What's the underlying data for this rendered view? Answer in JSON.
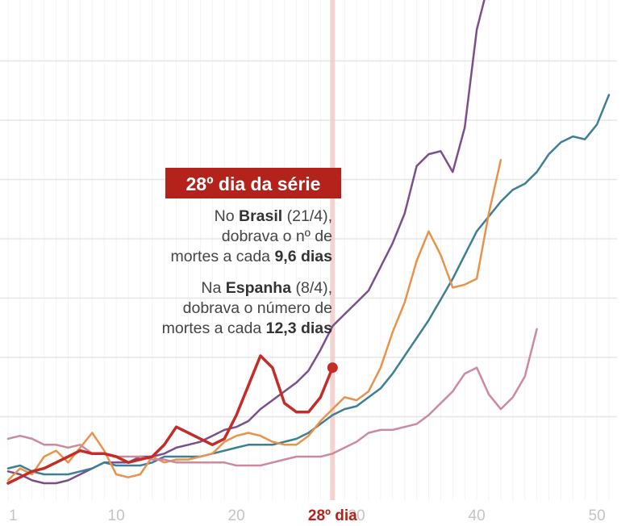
{
  "chart_data": {
    "type": "line",
    "xlabel": "",
    "ylabel": "",
    "x_ticks": [
      1,
      10,
      20,
      30,
      40,
      50
    ],
    "highlight_tick": {
      "x": 28,
      "label": "28º dia"
    },
    "xlim": [
      1,
      51
    ],
    "ylim": [
      0,
      8
    ],
    "grid": true,
    "series": [
      {
        "key": "purple",
        "color": "#7b4f8c",
        "width": 2.5,
        "x": [
          1,
          2,
          3,
          4,
          5,
          6,
          7,
          8,
          9,
          10,
          11,
          12,
          13,
          14,
          15,
          16,
          17,
          18,
          19,
          20,
          21,
          22,
          23,
          24,
          25,
          26,
          27,
          28,
          29,
          30,
          31,
          32,
          33,
          34,
          35,
          36,
          37,
          38,
          39,
          40,
          41
        ],
        "y": [
          0.05,
          0.0,
          -0.1,
          -0.15,
          -0.15,
          -0.1,
          0.0,
          0.1,
          0.2,
          0.2,
          0.2,
          0.3,
          0.3,
          0.35,
          0.45,
          0.5,
          0.55,
          0.65,
          0.75,
          0.8,
          0.9,
          1.1,
          1.25,
          1.4,
          1.55,
          1.75,
          2.1,
          2.5,
          2.7,
          2.9,
          3.1,
          3.5,
          3.9,
          4.4,
          5.2,
          5.4,
          5.45,
          5.1,
          5.85,
          7.5,
          8.3
        ]
      },
      {
        "key": "teal",
        "color": "#3e7f95",
        "width": 2.5,
        "x": [
          1,
          2,
          3,
          4,
          5,
          6,
          7,
          8,
          9,
          10,
          11,
          12,
          13,
          14,
          15,
          16,
          17,
          18,
          19,
          20,
          21,
          22,
          23,
          24,
          25,
          26,
          27,
          28,
          29,
          30,
          31,
          32,
          33,
          34,
          35,
          36,
          37,
          38,
          39,
          40,
          41,
          42,
          43,
          44,
          45,
          46,
          47,
          48,
          49,
          50,
          51
        ],
        "y": [
          0.1,
          0.15,
          0.05,
          0.0,
          0.0,
          0.0,
          0.05,
          0.1,
          0.2,
          0.15,
          0.15,
          0.15,
          0.2,
          0.3,
          0.3,
          0.3,
          0.3,
          0.35,
          0.4,
          0.45,
          0.5,
          0.5,
          0.5,
          0.55,
          0.6,
          0.7,
          0.85,
          1.0,
          1.1,
          1.15,
          1.3,
          1.45,
          1.7,
          2.0,
          2.3,
          2.6,
          2.95,
          3.3,
          3.7,
          4.1,
          4.35,
          4.6,
          4.8,
          4.9,
          5.1,
          5.4,
          5.6,
          5.7,
          5.65,
          5.9,
          6.4
        ]
      },
      {
        "key": "orange",
        "color": "#e8924a",
        "width": 2.5,
        "x": [
          1,
          2,
          3,
          4,
          5,
          6,
          7,
          8,
          9,
          10,
          11,
          12,
          13,
          14,
          15,
          16,
          17,
          18,
          19,
          20,
          21,
          22,
          23,
          24,
          25,
          26,
          27,
          28,
          29,
          30,
          31,
          32,
          33,
          34,
          35,
          36,
          37,
          38,
          39,
          40,
          41,
          42
        ],
        "y": [
          -0.1,
          0.1,
          0.0,
          0.3,
          0.4,
          0.2,
          0.45,
          0.7,
          0.4,
          0.0,
          -0.05,
          0.0,
          0.3,
          0.2,
          0.25,
          0.25,
          0.3,
          0.35,
          0.55,
          0.65,
          0.7,
          0.65,
          0.55,
          0.5,
          0.5,
          0.65,
          0.9,
          1.1,
          1.3,
          1.25,
          1.4,
          1.8,
          2.4,
          2.9,
          3.6,
          4.1,
          3.7,
          3.15,
          3.2,
          3.3,
          4.4,
          5.3
        ]
      },
      {
        "key": "pink",
        "color": "#cc8a9f",
        "width": 2.5,
        "x": [
          1,
          2,
          3,
          4,
          5,
          6,
          7,
          8,
          9,
          10,
          11,
          12,
          13,
          14,
          15,
          16,
          17,
          18,
          19,
          20,
          21,
          22,
          23,
          24,
          25,
          26,
          27,
          28,
          29,
          30,
          31,
          32,
          33,
          34,
          35,
          36,
          37,
          38,
          39,
          40,
          41,
          42,
          43,
          44,
          45
        ],
        "y": [
          0.6,
          0.65,
          0.6,
          0.5,
          0.5,
          0.45,
          0.5,
          0.35,
          0.35,
          0.3,
          0.3,
          0.3,
          0.25,
          0.25,
          0.2,
          0.2,
          0.2,
          0.2,
          0.2,
          0.15,
          0.15,
          0.15,
          0.2,
          0.25,
          0.3,
          0.3,
          0.3,
          0.35,
          0.45,
          0.55,
          0.7,
          0.75,
          0.75,
          0.8,
          0.85,
          1.0,
          1.2,
          1.4,
          1.7,
          1.8,
          1.35,
          1.1,
          1.3,
          1.65,
          2.45
        ]
      },
      {
        "key": "brasil",
        "color": "#c42d27",
        "width": 3.5,
        "x": [
          1,
          2,
          3,
          4,
          5,
          6,
          7,
          8,
          9,
          10,
          11,
          12,
          13,
          14,
          15,
          16,
          17,
          18,
          19,
          20,
          21,
          22,
          23,
          24,
          25,
          26,
          27,
          28
        ],
        "y": [
          -0.15,
          -0.05,
          0.05,
          0.1,
          0.2,
          0.3,
          0.4,
          0.35,
          0.35,
          0.3,
          0.2,
          0.25,
          0.3,
          0.5,
          0.8,
          0.7,
          0.6,
          0.5,
          0.6,
          1.0,
          1.5,
          2.0,
          1.8,
          1.2,
          1.05,
          1.05,
          1.3,
          1.8
        ]
      }
    ],
    "marker": {
      "series": "brasil",
      "x": 28,
      "y": 1.8,
      "color": "#c42d27"
    },
    "annotation": {
      "title": "28º dia da série",
      "brasil_lines": [
        [
          {
            "t": "No ",
            "b": false
          },
          {
            "t": "Brasil",
            "b": true
          },
          {
            "t": " (21/4),",
            "b": false
          }
        ],
        [
          {
            "t": "dobrava o nº de",
            "b": false
          }
        ],
        [
          {
            "t": "mortes a cada ",
            "b": false
          },
          {
            "t": "9,6 dias",
            "b": true
          }
        ]
      ],
      "espanha_lines": [
        [
          {
            "t": "Na ",
            "b": false
          },
          {
            "t": "Espanha",
            "b": true
          },
          {
            "t": " (8/4),",
            "b": false
          }
        ],
        [
          {
            "t": "dobrava o número de",
            "b": false
          }
        ],
        [
          {
            "t": "mortes a cada ",
            "b": false
          },
          {
            "t": "12,3 dias",
            "b": true
          }
        ]
      ],
      "title_bg": "#b3231b",
      "line_color": "#f2c4c1"
    }
  }
}
